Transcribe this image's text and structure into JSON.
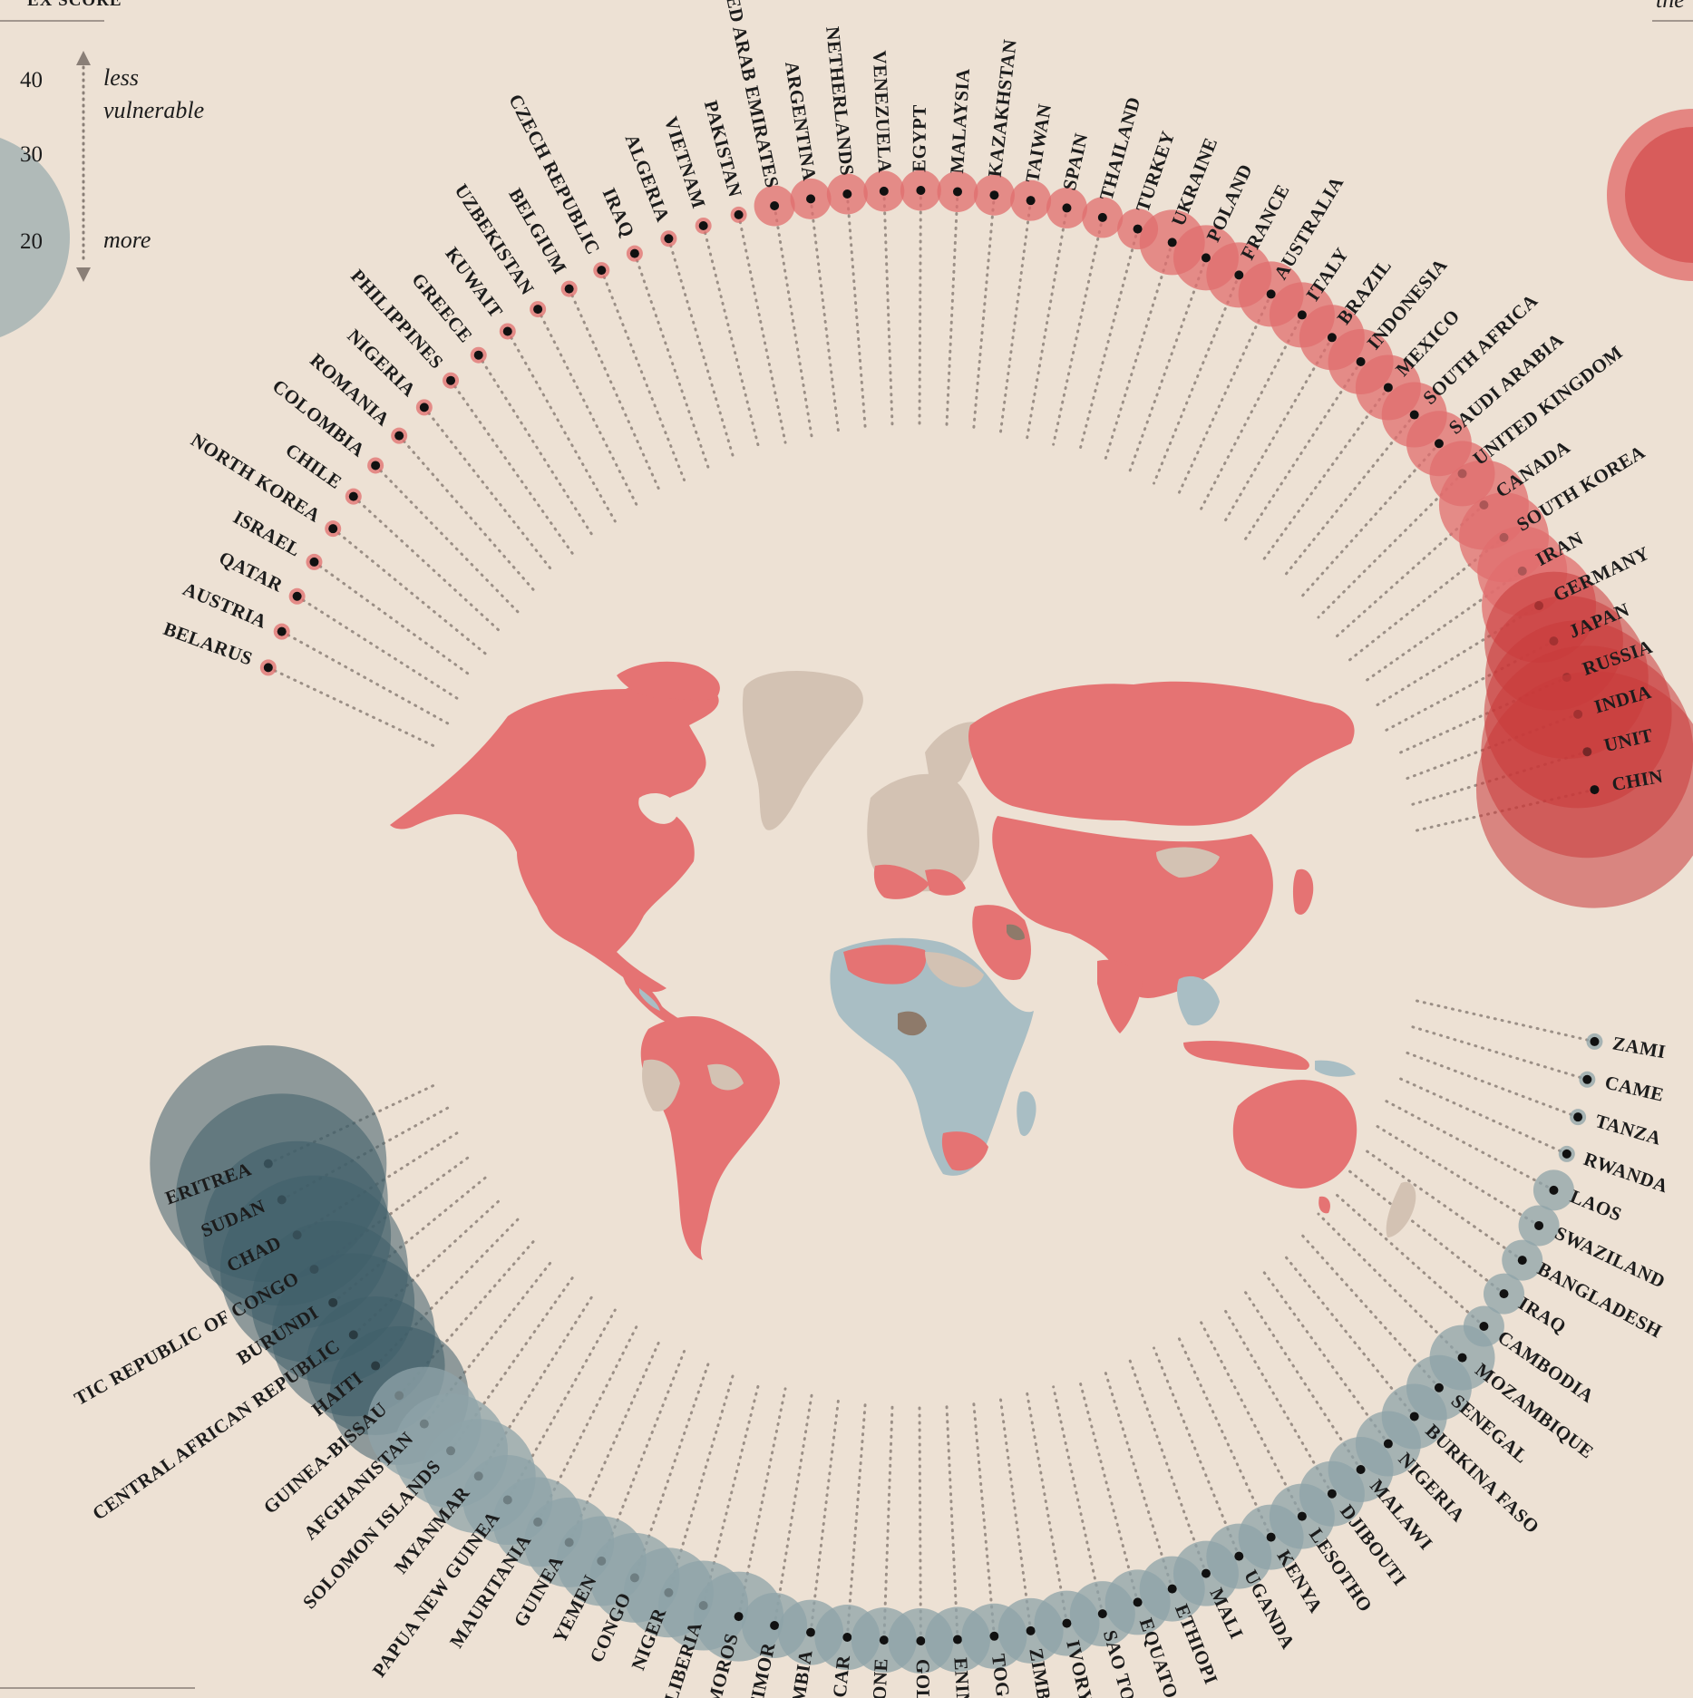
{
  "legend": {
    "header": "EX SCORE",
    "scale_values": [
      "40",
      "30",
      "20"
    ],
    "less_line1": "less",
    "less_line2": "vulnerable",
    "more": "more"
  },
  "colors": {
    "background": "#ede1d4",
    "less_vulnerable": "#e06060",
    "more_vulnerable": "#6f8f98",
    "neutral_land": "#d3c2b3",
    "dark_land": "#8e7a6a"
  },
  "top_arc": {
    "scale_note": "Bubble size (r_px) encodes index score magnitude; first 48 entries read left-to-right along the upper arc",
    "countries": [
      {
        "name": "BELARUS",
        "size": 1
      },
      {
        "name": "AUSTRIA",
        "size": 1
      },
      {
        "name": "QATAR",
        "size": 1
      },
      {
        "name": "ISRAEL",
        "size": 1
      },
      {
        "name": "NORTH KOREA",
        "size": 1
      },
      {
        "name": "CHILE",
        "size": 1
      },
      {
        "name": "COLOMBIA",
        "size": 1
      },
      {
        "name": "ROMANIA",
        "size": 1
      },
      {
        "name": "NIGERIA",
        "size": 1
      },
      {
        "name": "PHILIPPINES",
        "size": 1
      },
      {
        "name": "GREECE",
        "size": 1
      },
      {
        "name": "KUWAIT",
        "size": 1
      },
      {
        "name": "UZBEKISTAN",
        "size": 1
      },
      {
        "name": "BELGIUM",
        "size": 1
      },
      {
        "name": "CZECH REPUBLIC",
        "size": 1
      },
      {
        "name": "IRAQ",
        "size": 1
      },
      {
        "name": "ALGERIA",
        "size": 1
      },
      {
        "name": "VIETNAM",
        "size": 1
      },
      {
        "name": "PAKISTAN",
        "size": 1
      },
      {
        "name": "UNITED ARAB EMIRATES",
        "size": 2
      },
      {
        "name": "ARGENTINA",
        "size": 2
      },
      {
        "name": "NETHERLANDS",
        "size": 2
      },
      {
        "name": "VENEZUELA",
        "size": 2
      },
      {
        "name": "EGYPT",
        "size": 2
      },
      {
        "name": "MALAYSIA",
        "size": 2
      },
      {
        "name": "KAZAKHSTAN",
        "size": 2
      },
      {
        "name": "TAIWAN",
        "size": 2
      },
      {
        "name": "SPAIN",
        "size": 2
      },
      {
        "name": "THAILAND",
        "size": 2
      },
      {
        "name": "TURKEY",
        "size": 2
      },
      {
        "name": "UKRAINE",
        "size": 3
      },
      {
        "name": "POLAND",
        "size": 3
      },
      {
        "name": "FRANCE",
        "size": 3
      },
      {
        "name": "AUSTRALIA",
        "size": 3
      },
      {
        "name": "ITALY",
        "size": 3
      },
      {
        "name": "BRAZIL",
        "size": 3
      },
      {
        "name": "INDONESIA",
        "size": 3
      },
      {
        "name": "MEXICO",
        "size": 3
      },
      {
        "name": "SOUTH AFRICA",
        "size": 3
      },
      {
        "name": "SAUDI ARABIA",
        "size": 3
      },
      {
        "name": "UNITED KINGDOM",
        "size": 3
      },
      {
        "name": "CANADA",
        "size": 4
      },
      {
        "name": "SOUTH KOREA",
        "size": 4
      },
      {
        "name": "IRAN",
        "size": 4
      },
      {
        "name": "GERMANY",
        "size": 5
      },
      {
        "name": "JAPAN",
        "size": 6
      },
      {
        "name": "RUSSIA",
        "size": 7
      },
      {
        "name": "INDIA",
        "size": 8
      },
      {
        "name": "UNIT",
        "size": 9
      },
      {
        "name": "CHIN",
        "size": 10
      }
    ]
  },
  "bottom_arc": {
    "countries": [
      {
        "name": "ERITREA",
        "size": 10
      },
      {
        "name": "SUDAN",
        "size": 9
      },
      {
        "name": "CHAD",
        "size": 8
      },
      {
        "name": "TIC REPUBLIC OF CONGO",
        "size": 8
      },
      {
        "name": "BURUNDI",
        "size": 7
      },
      {
        "name": "CENTRAL AFRICAN REPUBLIC",
        "size": 7
      },
      {
        "name": "HAITI",
        "size": 6
      },
      {
        "name": "GUINEA-BISSAU",
        "size": 6
      },
      {
        "name": "AFGHANISTAN",
        "size": 5
      },
      {
        "name": "SOLOMON ISLANDS",
        "size": 5
      },
      {
        "name": "MYANMAR",
        "size": 5
      },
      {
        "name": "PAPUA NEW GUINEA",
        "size": 4
      },
      {
        "name": "MAURITANIA",
        "size": 4
      },
      {
        "name": "GUINEA",
        "size": 4
      },
      {
        "name": "YEMEN",
        "size": 4
      },
      {
        "name": "CONGO",
        "size": 4
      },
      {
        "name": "NIGER",
        "size": 4
      },
      {
        "name": "LIBERIA",
        "size": 4
      },
      {
        "name": "COMOROS",
        "size": 4
      },
      {
        "name": "T TIMOR",
        "size": 3
      },
      {
        "name": "GAMBIA",
        "size": 3
      },
      {
        "name": "GASCAR",
        "size": 3
      },
      {
        "name": "LEONE",
        "size": 3
      },
      {
        "name": "GOLA",
        "size": 3
      },
      {
        "name": "ENIN",
        "size": 3
      },
      {
        "name": "TOGO",
        "size": 3
      },
      {
        "name": "ZIMB",
        "size": 3
      },
      {
        "name": "IVORY",
        "size": 3
      },
      {
        "name": "SAO TO",
        "size": 3
      },
      {
        "name": "EQUATO",
        "size": 3
      },
      {
        "name": "ETHIOPI",
        "size": 3
      },
      {
        "name": "MALI",
        "size": 3
      },
      {
        "name": "UGANDA",
        "size": 3
      },
      {
        "name": "KENYA",
        "size": 3
      },
      {
        "name": "LESOTHO",
        "size": 3
      },
      {
        "name": "DJIBOUTI",
        "size": 3
      },
      {
        "name": "MALAWI",
        "size": 3
      },
      {
        "name": "NIGERIA",
        "size": 3
      },
      {
        "name": "BURKINA FASO",
        "size": 3
      },
      {
        "name": "SENEGAL",
        "size": 3
      },
      {
        "name": "MOZAMBIQUE",
        "size": 3
      },
      {
        "name": "CAMBODIA",
        "size": 2
      },
      {
        "name": "IRAQ",
        "size": 2
      },
      {
        "name": "BANGLADESH",
        "size": 2
      },
      {
        "name": "SWAZILAND",
        "size": 2
      },
      {
        "name": "LAOS",
        "size": 2
      },
      {
        "name": "RWANDA",
        "size": 1
      },
      {
        "name": "TANZA",
        "size": 1
      },
      {
        "name": "CAME",
        "size": 1
      },
      {
        "name": "ZAMI",
        "size": 1
      }
    ]
  },
  "corner_text": "the"
}
